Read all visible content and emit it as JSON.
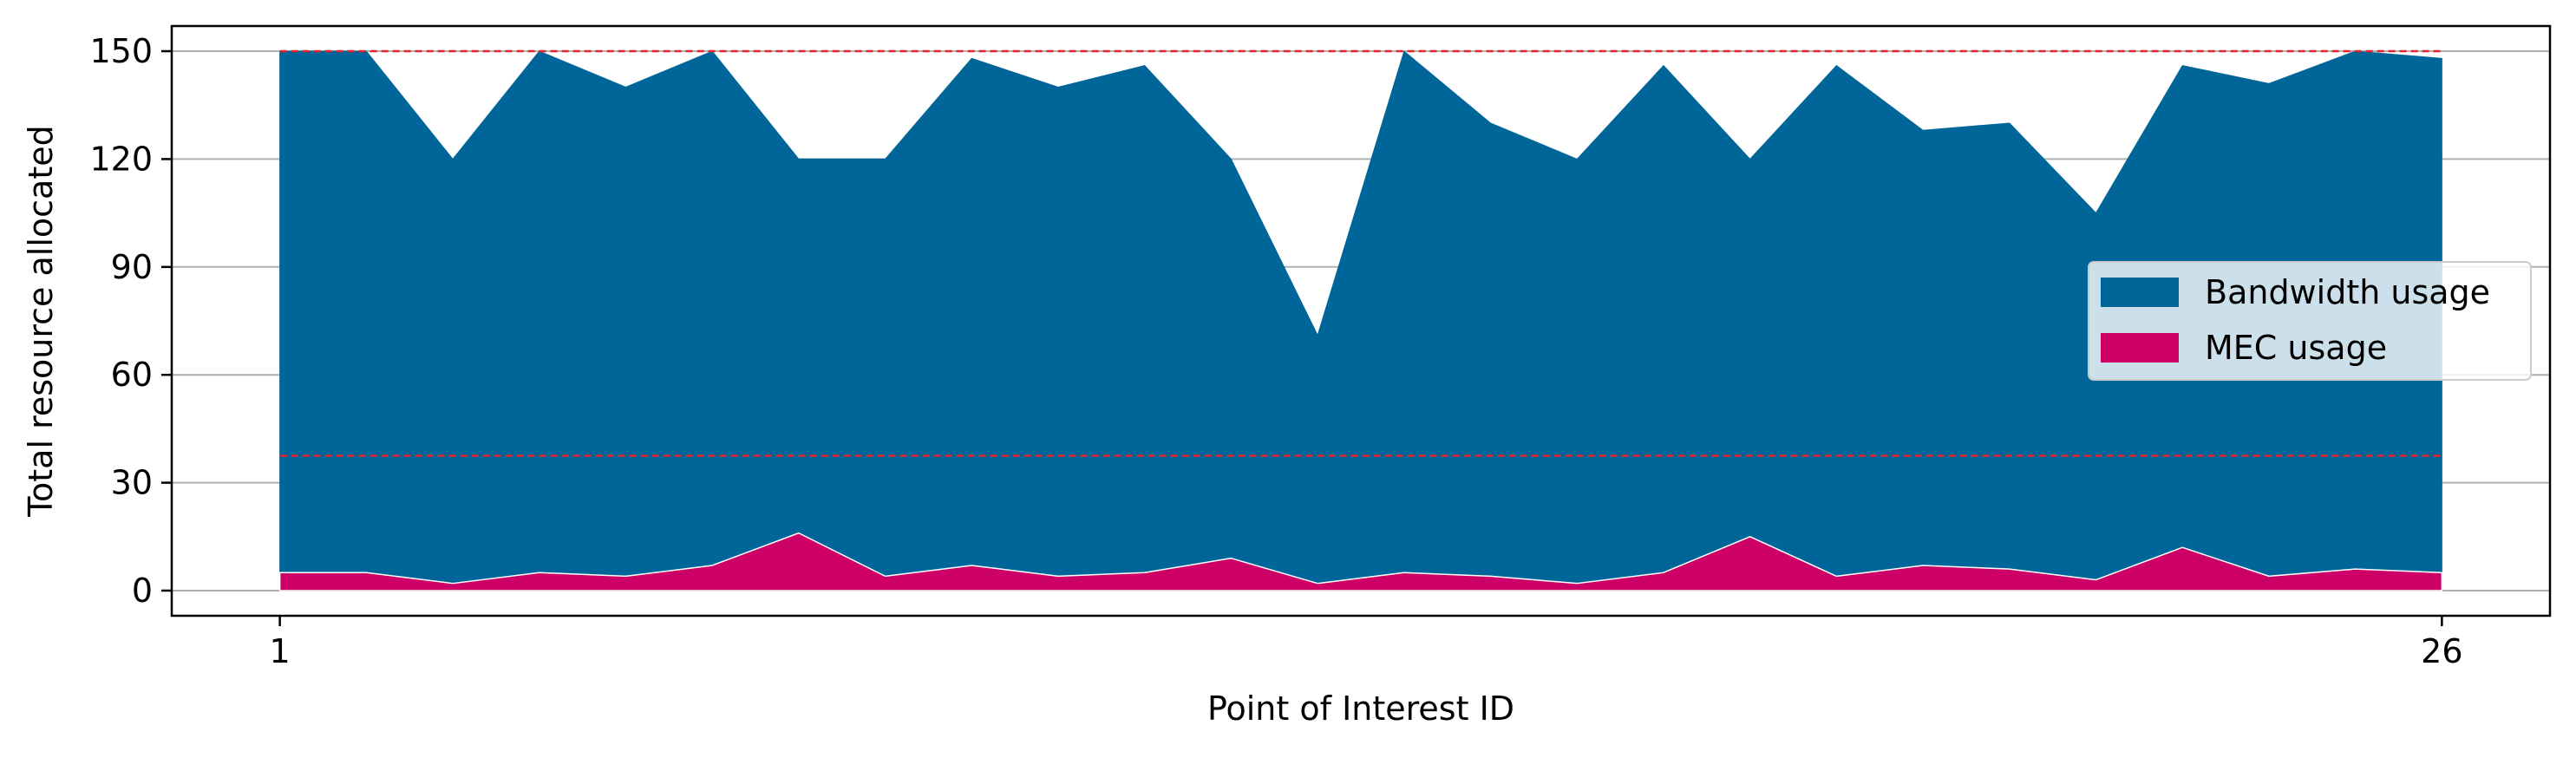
{
  "chart_data": {
    "type": "area",
    "xlabel": "Point of Interest ID",
    "ylabel": "Total resource allocated",
    "x": [
      1,
      2,
      3,
      4,
      5,
      6,
      7,
      8,
      9,
      10,
      11,
      12,
      13,
      14,
      15,
      16,
      17,
      18,
      19,
      20,
      21,
      22,
      23,
      24,
      25,
      26
    ],
    "xlim": [
      -0.25,
      27.25
    ],
    "x_ticks": [
      1,
      26
    ],
    "ylim": [
      -7,
      157
    ],
    "y_ticks": [
      0,
      30,
      60,
      90,
      120,
      150
    ],
    "grid": "horizontal",
    "legend_position": "center-right",
    "series": [
      {
        "name": "Bandwidth usage",
        "color": "#006699",
        "values": [
          150,
          150,
          120,
          150,
          140,
          150,
          120,
          120,
          148,
          140,
          146,
          120,
          71,
          150,
          130,
          120,
          146,
          120,
          146,
          128,
          130,
          105,
          146,
          141,
          150,
          148
        ]
      },
      {
        "name": "MEC usage",
        "color": "#cc0066",
        "values": [
          5,
          5,
          2,
          5,
          4,
          7,
          16,
          4,
          7,
          4,
          5,
          9,
          2,
          5,
          4,
          2,
          5,
          15,
          4,
          7,
          6,
          3,
          12,
          4,
          6,
          5
        ]
      }
    ],
    "reference_lines": [
      {
        "y": 150,
        "color": "#e8222a",
        "style": "dashed"
      },
      {
        "y": 37.5,
        "color": "#e8222a",
        "style": "dashed"
      }
    ]
  }
}
